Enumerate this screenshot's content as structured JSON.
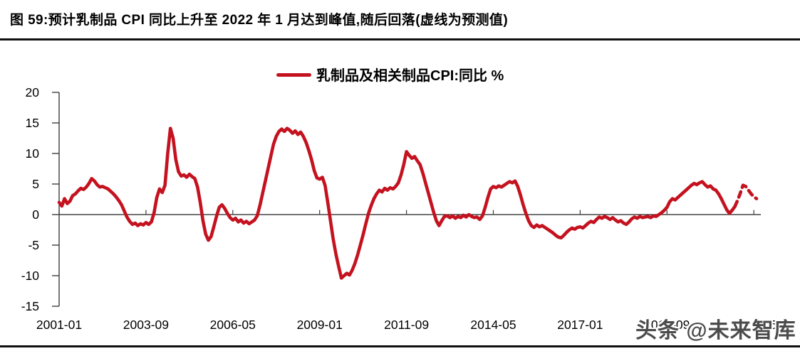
{
  "page": {
    "title": "图 59:预计乳制品 CPI 同比上升至 2022 年 1 月达到峰值,随后回落(虚线为预测值)",
    "watermark": "头条 @未来智库"
  },
  "legend": {
    "label": "乳制品及相关制品CPI:同比 %",
    "line_color": "#C4121F"
  },
  "chart_data": {
    "type": "line",
    "title": "乳制品及相关制品CPI:同比 %",
    "unit": "%",
    "x_start": "2001-01",
    "x_end": "2022-06",
    "x_tick_labels": [
      "2001-01",
      "2003-09",
      "2006-05",
      "2009-01",
      "2011-09",
      "2014-05",
      "2017-01",
      "2019-09",
      "2022-05"
    ],
    "x_tick_interval_months": 32,
    "ylim": [
      -15,
      20
    ],
    "y_ticks": [
      20,
      15,
      10,
      5,
      0,
      -5,
      -10,
      -15
    ],
    "grid": "off",
    "legend_position": "top-center",
    "line_color": "#C4121F",
    "series": [
      {
        "name": "乳制品及相关制品CPI:同比 %",
        "style": "solid",
        "start": "2001-01",
        "start_month_index": 0,
        "values": [
          2.0,
          1.4,
          2.6,
          1.8,
          2.2,
          3.1,
          3.4,
          3.9,
          4.3,
          4.1,
          4.5,
          5.1,
          5.9,
          5.5,
          4.9,
          4.5,
          4.6,
          4.4,
          4.2,
          3.8,
          3.4,
          2.9,
          2.3,
          1.6,
          0.6,
          -0.4,
          -1.1,
          -1.6,
          -1.4,
          -1.8,
          -1.5,
          -1.7,
          -1.3,
          -1.6,
          -1.2,
          0.3,
          2.8,
          4.2,
          3.6,
          4.8,
          10.0,
          14.1,
          12.5,
          9.0,
          7.0,
          6.3,
          6.5,
          6.1,
          6.6,
          6.2,
          5.9,
          4.5,
          2.0,
          -1.0,
          -3.2,
          -4.2,
          -3.6,
          -2.0,
          -0.3,
          1.2,
          1.6,
          1.0,
          0.2,
          -0.5,
          -0.9,
          -0.6,
          -1.2,
          -0.9,
          -1.4,
          -1.1,
          -1.5,
          -1.2,
          -0.9,
          -0.2,
          1.5,
          3.5,
          5.5,
          7.5,
          9.5,
          11.5,
          12.8,
          13.6,
          14.0,
          13.6,
          14.1,
          13.8,
          13.3,
          13.7,
          13.1,
          13.5,
          12.8,
          11.8,
          10.5,
          9.0,
          7.2,
          6.0,
          5.8,
          6.1,
          4.8,
          2.0,
          -1.0,
          -4.0,
          -6.5,
          -8.5,
          -10.4,
          -10.0,
          -9.6,
          -9.9,
          -9.1,
          -8.0,
          -6.6,
          -5.0,
          -3.3,
          -1.5,
          0.2,
          1.5,
          2.6,
          3.4,
          4.0,
          3.7,
          4.3,
          4.0,
          4.4,
          4.2,
          4.6,
          5.2,
          6.5,
          8.2,
          10.3,
          9.7,
          9.2,
          9.5,
          8.8,
          8.2,
          6.8,
          5.2,
          3.6,
          2.0,
          0.4,
          -1.0,
          -1.8,
          -1.0,
          -0.3,
          -0.2,
          -0.5,
          -0.2,
          -0.6,
          -0.3,
          -0.5,
          -0.1,
          -0.4,
          0.0,
          -0.3,
          -0.5,
          -0.4,
          -0.8,
          -0.2,
          1.2,
          2.8,
          4.2,
          4.6,
          4.4,
          4.7,
          4.5,
          4.8,
          5.1,
          5.4,
          5.2,
          5.5,
          4.6,
          3.2,
          1.6,
          0.2,
          -1.0,
          -1.8,
          -2.1,
          -1.7,
          -2.0,
          -1.8,
          -2.1,
          -2.4,
          -2.7,
          -3.0,
          -3.4,
          -3.7,
          -3.8,
          -3.4,
          -2.9,
          -2.5,
          -2.2,
          -2.4,
          -2.1,
          -2.0,
          -2.2,
          -1.8,
          -1.4,
          -1.1,
          -1.3,
          -0.8,
          -0.4,
          -0.6,
          -0.3,
          -0.5,
          -0.8,
          -0.5,
          -0.9,
          -1.2,
          -1.0,
          -1.4,
          -1.6,
          -1.2,
          -0.7,
          -0.4,
          -0.6,
          -0.3,
          -0.5,
          -0.4,
          -0.3,
          -0.5,
          -0.2,
          -0.3,
          0.0,
          0.3,
          0.7,
          1.2,
          2.1,
          2.6,
          2.4,
          2.8,
          3.2,
          3.6,
          4.0,
          4.4,
          4.8,
          5.1,
          4.9,
          5.2,
          5.4,
          4.9,
          4.5,
          4.7,
          4.2,
          4.0,
          3.4,
          2.6,
          1.7,
          0.8,
          0.2,
          0.7,
          1.3
        ]
      },
      {
        "name": "预测值",
        "style": "dashed",
        "start": "2021-10",
        "start_month_index": 249,
        "peak_note": "2022-01 峰值",
        "values": [
          1.3,
          2.3,
          3.5,
          4.8,
          4.6,
          4.0,
          3.4,
          2.9,
          2.6
        ]
      }
    ]
  }
}
